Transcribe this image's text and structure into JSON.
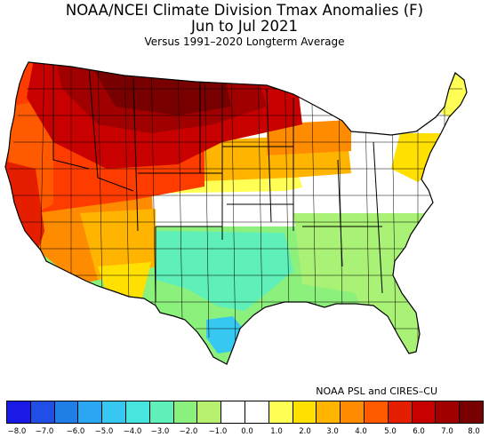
{
  "title": {
    "line1": "NOAA/NCEI Climate Division Tmax Anomalies (F)",
    "line2": "Jun to Jul 2021",
    "line3": "Versus 1991–2020 Longterm Average"
  },
  "credit": "NOAA PSL and CIRES–CU",
  "colorbar": {
    "colors": [
      "#1a1ae6",
      "#1f4fe6",
      "#1f7fe6",
      "#2aa6f2",
      "#36c8f0",
      "#47e5e0",
      "#5ef0b8",
      "#8cf07c",
      "#b8f070",
      "#ffffff",
      "#ffffff",
      "#ffff55",
      "#ffe000",
      "#ffb400",
      "#ff8c00",
      "#ff5a00",
      "#e61e00",
      "#c80000",
      "#a00000",
      "#780000"
    ],
    "tick_labels": [
      "−8.0",
      "−7.0",
      "−6.0",
      "−5.0",
      "−4.0",
      "−3.0",
      "−2.0",
      "−1.0",
      "0.0",
      "1.0",
      "2.0",
      "3.0",
      "4.0",
      "5.0",
      "6.0",
      "7.0",
      "8.0"
    ]
  }
}
